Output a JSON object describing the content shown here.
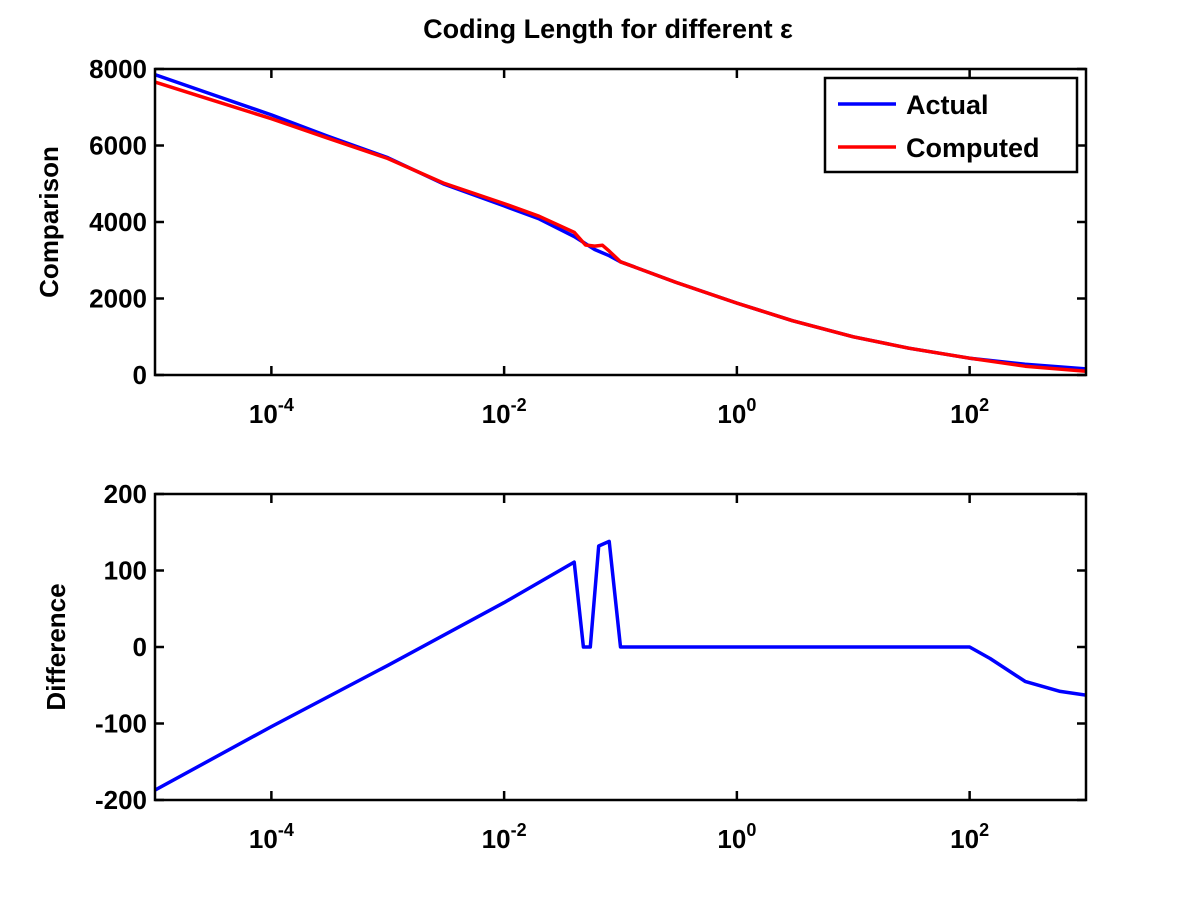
{
  "chart_data": [
    {
      "type": "line",
      "title": "Coding Length for different ε",
      "xlabel": "",
      "ylabel": "Comparison",
      "xscale": "log",
      "xlim": [
        1e-05,
        1000
      ],
      "ylim": [
        0,
        8000
      ],
      "xticks": [
        {
          "value": 0.0001,
          "base": "10",
          "exp": "-4"
        },
        {
          "value": 0.01,
          "base": "10",
          "exp": "-2"
        },
        {
          "value": 1,
          "base": "10",
          "exp": "0"
        },
        {
          "value": 100,
          "base": "10",
          "exp": "2"
        }
      ],
      "yticks": [
        {
          "value": 0,
          "label": "0"
        },
        {
          "value": 2000,
          "label": "2000"
        },
        {
          "value": 4000,
          "label": "4000"
        },
        {
          "value": 6000,
          "label": "6000"
        },
        {
          "value": 8000,
          "label": "8000"
        }
      ],
      "grid": false,
      "legend": "top-right",
      "series": [
        {
          "name": "Actual",
          "color": "#0000ff",
          "x": [
            1e-05,
            3e-05,
            0.0001,
            0.0003,
            0.001,
            0.003,
            0.01,
            0.02,
            0.04,
            0.06,
            0.08,
            0.1,
            0.3,
            1,
            3,
            10,
            30,
            100,
            300,
            1000
          ],
          "y": [
            7850,
            7350,
            6800,
            6250,
            5680,
            5000,
            4420,
            4080,
            3620,
            3280,
            3120,
            2960,
            2420,
            1880,
            1420,
            1000,
            700,
            440,
            280,
            160
          ]
        },
        {
          "name": "Computed",
          "color": "#ff0000",
          "x": [
            1e-05,
            3e-05,
            0.0001,
            0.0003,
            0.001,
            0.003,
            0.01,
            0.02,
            0.04,
            0.05,
            0.06,
            0.07,
            0.08,
            0.1,
            0.3,
            1,
            3,
            10,
            30,
            100,
            300,
            1000
          ],
          "y": [
            7660,
            7200,
            6700,
            6200,
            5660,
            5020,
            4480,
            4150,
            3730,
            3400,
            3370,
            3390,
            3240,
            2960,
            2420,
            1880,
            1420,
            1000,
            700,
            440,
            230,
            100
          ]
        }
      ]
    },
    {
      "type": "line",
      "title": "",
      "xlabel": "",
      "ylabel": "Difference",
      "xscale": "log",
      "xlim": [
        1e-05,
        1000
      ],
      "ylim": [
        -200,
        200
      ],
      "xticks": [
        {
          "value": 0.0001,
          "base": "10",
          "exp": "-4"
        },
        {
          "value": 0.01,
          "base": "10",
          "exp": "-2"
        },
        {
          "value": 1,
          "base": "10",
          "exp": "0"
        },
        {
          "value": 100,
          "base": "10",
          "exp": "2"
        }
      ],
      "yticks": [
        {
          "value": -200,
          "label": "-200"
        },
        {
          "value": -100,
          "label": "-100"
        },
        {
          "value": 0,
          "label": "0"
        },
        {
          "value": 100,
          "label": "100"
        },
        {
          "value": 200,
          "label": "200"
        }
      ],
      "grid": false,
      "series": [
        {
          "color": "#0000ff",
          "x": [
            1e-05,
            0.0001,
            0.001,
            0.01,
            0.04,
            0.048,
            0.055,
            0.065,
            0.08,
            0.1,
            1,
            10,
            100,
            150,
            300,
            600,
            1000
          ],
          "y": [
            -187,
            -104,
            -24,
            58,
            111,
            0,
            0,
            132,
            138,
            0,
            0,
            0,
            0,
            -15,
            -45,
            -58,
            -63
          ]
        }
      ]
    }
  ]
}
